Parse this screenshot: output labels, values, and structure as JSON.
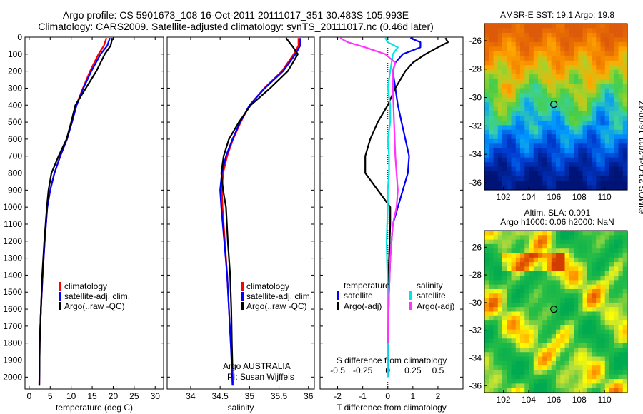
{
  "header": {
    "line1": "Argo profile: CS 5901673_108 16-Oct-2011 20111017_351 30.483S 105.993E",
    "line2": "Climatology: CARS2009. Satellite-adjusted climatology: synTS_20111017.nc (0.46d later)"
  },
  "colors": {
    "climatology": "#ff0000",
    "satellite": "#0000ff",
    "argo": "#000000",
    "sal_satellite": "#00e5e5",
    "sal_argo": "#ff33ff"
  },
  "depth_ticks": [
    0,
    100,
    200,
    300,
    400,
    500,
    600,
    700,
    800,
    900,
    1000,
    1100,
    1200,
    1300,
    1400,
    1500,
    1600,
    1700,
    1800,
    1900,
    2000
  ],
  "chart_data": [
    {
      "type": "line",
      "name": "temperature",
      "xlabel": "temperature (deg C)",
      "xlim": [
        -1,
        32
      ],
      "ylim": [
        0,
        2070
      ],
      "y_reversed": true,
      "xticks": [
        0,
        5,
        10,
        15,
        20,
        25,
        30
      ],
      "legend": [
        "climatology",
        "satellite-adj. clim.",
        "Argo(..raw -QC)"
      ],
      "legend_position": "lower-center",
      "series": [
        {
          "name": "climatology",
          "color": "#ff0000",
          "x": [
            18.4,
            17.8,
            16.5,
            14.5,
            12.8,
            11.2,
            10.2,
            9.0,
            7.4,
            6.0,
            5.0,
            4.3,
            3.7,
            3.2,
            2.8,
            2.5,
            2.4
          ],
          "y": [
            5,
            50,
            100,
            200,
            300,
            400,
            500,
            600,
            700,
            800,
            900,
            1000,
            1200,
            1400,
            1600,
            1800,
            2050
          ]
        },
        {
          "name": "satellite-adj. clim.",
          "color": "#0000ff",
          "x": [
            19.2,
            18.6,
            17.0,
            14.8,
            12.9,
            11.3,
            10.2,
            9.0,
            7.4,
            6.0,
            5.0,
            4.3,
            3.7,
            3.2,
            2.8,
            2.5,
            2.4
          ],
          "y": [
            5,
            50,
            100,
            200,
            300,
            400,
            500,
            600,
            700,
            800,
            900,
            1000,
            1200,
            1400,
            1600,
            1800,
            2050
          ]
        },
        {
          "name": "Argo(..raw -QC)",
          "color": "#000000",
          "x": [
            19.8,
            19.4,
            18.0,
            16.0,
            13.5,
            11.0,
            10.0,
            8.9,
            7.0,
            5.3,
            4.6,
            4.2,
            3.6,
            3.1,
            2.8,
            2.5,
            2.4
          ],
          "y": [
            5,
            50,
            100,
            200,
            300,
            400,
            500,
            600,
            700,
            800,
            900,
            1000,
            1200,
            1400,
            1600,
            1800,
            2050
          ]
        }
      ]
    },
    {
      "type": "line",
      "name": "salinity",
      "xlabel": "salinity",
      "xlim": [
        33.6,
        36.1
      ],
      "ylim": [
        0,
        2070
      ],
      "y_reversed": true,
      "xticks": [
        34,
        34.5,
        35,
        35.5,
        36
      ],
      "legend": [
        "climatology",
        "satellite-adj. clim.",
        "Argo(..raw -QC)"
      ],
      "legend_position": "lower-center",
      "annotations": [
        "Argo AUSTRALIA",
        "PI: Susan Wijffels"
      ],
      "series": [
        {
          "name": "climatology",
          "color": "#ff0000",
          "x": [
            35.83,
            35.83,
            35.75,
            35.55,
            35.25,
            35.0,
            34.85,
            34.72,
            34.62,
            34.55,
            34.53,
            34.54,
            34.58,
            34.62,
            34.65,
            34.68,
            34.71,
            34.72
          ],
          "y": [
            5,
            50,
            100,
            200,
            300,
            400,
            500,
            600,
            700,
            800,
            900,
            1000,
            1200,
            1400,
            1600,
            1800,
            1950,
            2050
          ]
        },
        {
          "name": "satellite-adj. clim.",
          "color": "#0000ff",
          "x": [
            35.86,
            35.86,
            35.78,
            35.57,
            35.26,
            35.0,
            34.84,
            34.71,
            34.6,
            34.53,
            34.5,
            34.52,
            34.57,
            34.62,
            34.65,
            34.68,
            34.7,
            34.71
          ],
          "y": [
            5,
            50,
            100,
            200,
            300,
            400,
            500,
            600,
            700,
            800,
            900,
            1000,
            1200,
            1400,
            1600,
            1800,
            1950,
            2050
          ]
        },
        {
          "name": "Argo(..raw -QC)",
          "color": "#000000",
          "x": [
            35.62,
            35.72,
            35.82,
            35.65,
            35.35,
            35.02,
            34.82,
            34.65,
            34.56,
            34.52,
            34.55,
            34.6,
            34.63,
            34.67,
            34.69,
            34.7,
            34.71
          ],
          "y": [
            5,
            50,
            100,
            200,
            300,
            400,
            500,
            600,
            700,
            800,
            900,
            1000,
            1200,
            1400,
            1600,
            1800,
            1950
          ]
        }
      ]
    },
    {
      "type": "line",
      "name": "differences",
      "xlabel": "T difference from climatology",
      "top_xlabel": "S difference from climatology",
      "xlim": [
        -2.7,
        3.0
      ],
      "ylim": [
        0,
        2070
      ],
      "y_reversed": true,
      "xticks": [
        -2,
        -1,
        0,
        1,
        2
      ],
      "top_xticks": [
        "-0.5",
        "-0.25",
        "0",
        "0.25",
        "0.5"
      ],
      "legend_temperature_title": "temperature",
      "legend_salinity_title": "salinity",
      "legend": [
        "satellite",
        "Argo(-adj)",
        "satellite",
        "Argo(-adj)"
      ],
      "series": [
        {
          "name": "satellite",
          "group": "temperature",
          "color": "#0000ff",
          "x": [
            0.9,
            1.3,
            1.3,
            0.6,
            0.3,
            0.2,
            0.3,
            0.4,
            0.55,
            0.7,
            0.85,
            0.8,
            0.6,
            0.4,
            0.2,
            0.1,
            0.05,
            0.0,
            0.0
          ],
          "y": [
            5,
            30,
            60,
            100,
            150,
            200,
            300,
            400,
            500,
            600,
            700,
            800,
            900,
            1000,
            1100,
            1300,
            1500,
            1800,
            2000
          ]
        },
        {
          "name": "Argo(-adj)",
          "group": "temperature",
          "color": "#000000",
          "x": [
            2.3,
            2.4,
            2.0,
            1.5,
            1.0,
            0.7,
            0.3,
            0.0,
            -0.4,
            -0.7,
            -0.9,
            -0.9,
            -0.4,
            0.1,
            0.1,
            0.05,
            0.0,
            0.0
          ],
          "y": [
            5,
            30,
            60,
            100,
            150,
            200,
            300,
            400,
            500,
            600,
            700,
            800,
            900,
            1000,
            1100,
            1300,
            1500,
            1800
          ]
        },
        {
          "name": "satellite",
          "group": "salinity",
          "color": "#00e5e5",
          "x": [
            -0.1,
            0.0,
            0.4,
            0.2,
            0.1,
            0.0,
            0.1,
            0.1,
            0.0,
            0.05,
            0.05,
            0.0,
            0.0,
            -0.05,
            0.0,
            0.0,
            0.0
          ],
          "y": [
            5,
            30,
            60,
            100,
            200,
            300,
            400,
            500,
            600,
            700,
            800,
            900,
            1000,
            1200,
            1500,
            1800,
            2000
          ]
        },
        {
          "name": "Argo(-adj)",
          "group": "salinity",
          "color": "#ff33ff",
          "x": [
            -1.9,
            -1.6,
            -0.9,
            -0.1,
            0.3,
            0.2,
            0.2,
            0.25,
            0.3,
            0.35,
            0.4,
            0.35,
            0.2,
            0.1,
            0.05,
            0.0
          ],
          "y": [
            5,
            30,
            60,
            100,
            150,
            200,
            300,
            500,
            700,
            800,
            900,
            1000,
            1100,
            1300,
            1500,
            1800
          ]
        }
      ]
    }
  ],
  "maps": [
    {
      "title": "AMSR-E SST: 19.1  Argo: 19.8",
      "type": "heatmap",
      "lon_range": [
        100.5,
        111.8
      ],
      "lat_range": [
        -36.5,
        -24.8
      ],
      "xticks": [
        102,
        104,
        106,
        108,
        110
      ],
      "yticks": [
        -26,
        -28,
        -30,
        -32,
        -34,
        -36
      ],
      "marker": {
        "lon": 105.99,
        "lat": -30.48
      }
    },
    {
      "title_line1": "Altim. SLA: 0.091",
      "title_line2": "Argo h1000: 0.06 h2000: NaN",
      "type": "heatmap",
      "lon_range": [
        100.5,
        111.8
      ],
      "lat_range": [
        -36.5,
        -24.8
      ],
      "xticks": [
        102,
        104,
        106,
        108,
        110
      ],
      "yticks": [
        -26,
        -28,
        -30,
        -32,
        -34,
        -36
      ],
      "marker": {
        "lon": 105.99,
        "lat": -30.48
      }
    }
  ],
  "footer": "©IMOS 23-Oct-2011 16:00:47"
}
